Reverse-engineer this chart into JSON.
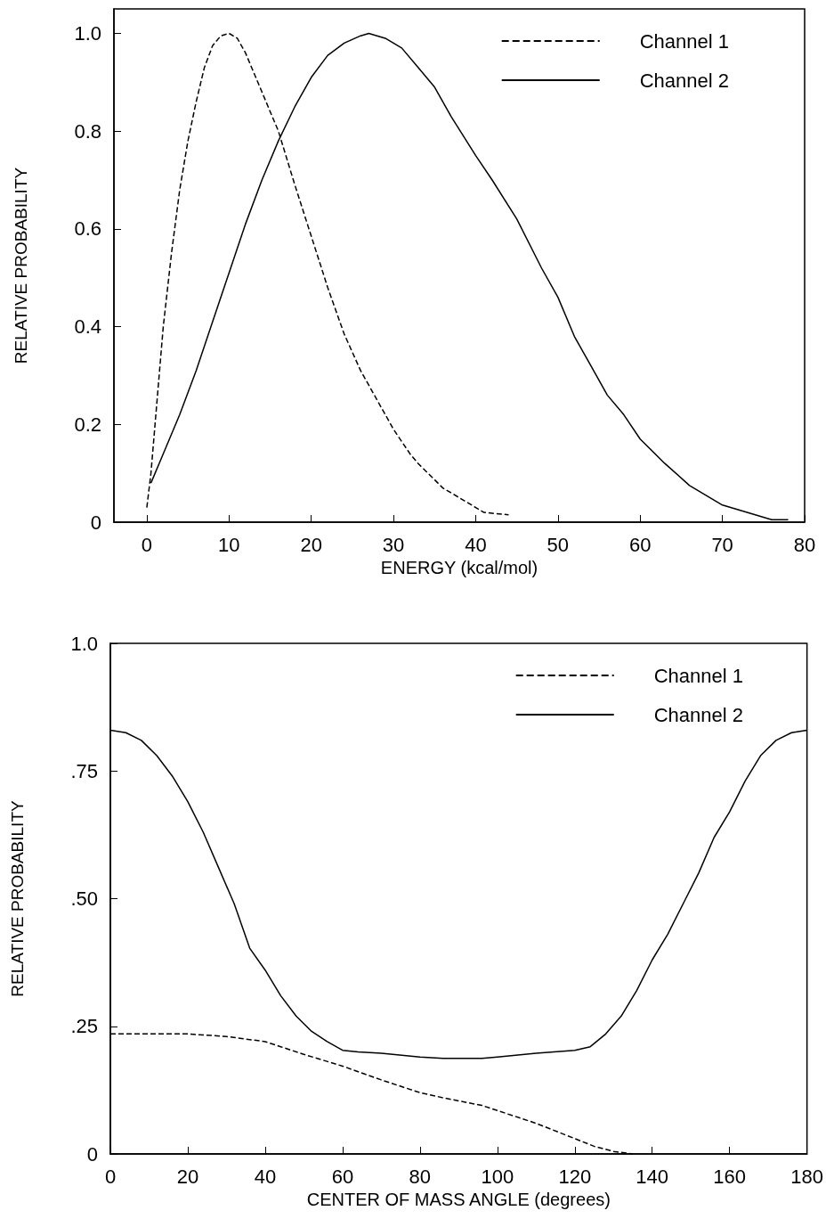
{
  "chart_data": [
    {
      "type": "line",
      "xlabel": "ENERGY (kcal/mol)",
      "ylabel": "RELATIVE PROBABILITY",
      "xlim": [
        -4,
        80
      ],
      "xticks": [
        0,
        10,
        20,
        30,
        40,
        50,
        60,
        70,
        80
      ],
      "ylim": [
        0,
        1.05
      ],
      "yticks": [
        0,
        {
          "value": 0.2,
          "label": "0.2"
        },
        {
          "value": 0.4,
          "label": "0.4"
        },
        {
          "value": 0.6,
          "label": "0.6"
        },
        {
          "value": 0.8,
          "label": "0.8"
        },
        {
          "value": 1,
          "label": "1.0"
        }
      ],
      "grid": false,
      "legend": "top right",
      "marker": "none",
      "series": [
        {
          "name": "Channel 1",
          "color": "#000000",
          "line_style": "dashed",
          "x": [
            0,
            0.5,
            1,
            2,
            3,
            4,
            5,
            6,
            7,
            8,
            9,
            10,
            11,
            12,
            13,
            14,
            16,
            18,
            20,
            22,
            24,
            26,
            28,
            30,
            32,
            33,
            36,
            38,
            40,
            41,
            44
          ],
          "values": [
            0.03,
            0.1,
            0.2,
            0.4,
            0.55,
            0.68,
            0.78,
            0.86,
            0.93,
            0.975,
            0.995,
            1.0,
            0.99,
            0.96,
            0.92,
            0.88,
            0.8,
            0.69,
            0.585,
            0.48,
            0.385,
            0.31,
            0.25,
            0.19,
            0.14,
            0.12,
            0.07,
            0.05,
            0.03,
            0.02,
            0.015
          ]
        },
        {
          "name": "Channel 2",
          "color": "#000000",
          "line_style": "solid",
          "x": [
            0.5,
            2,
            4,
            6,
            8,
            10,
            12,
            14,
            16,
            18,
            20,
            22,
            24,
            26,
            27,
            29,
            31,
            33,
            35,
            37,
            40,
            42,
            45,
            48,
            50,
            52,
            54,
            56,
            58,
            60,
            63,
            66,
            70,
            73,
            76,
            78
          ],
          "values": [
            0.08,
            0.14,
            0.22,
            0.31,
            0.41,
            0.51,
            0.61,
            0.7,
            0.78,
            0.85,
            0.91,
            0.955,
            0.98,
            0.995,
            1.0,
            0.99,
            0.97,
            0.93,
            0.89,
            0.83,
            0.75,
            0.7,
            0.62,
            0.52,
            0.46,
            0.38,
            0.32,
            0.26,
            0.22,
            0.17,
            0.12,
            0.075,
            0.035,
            0.02,
            0.005,
            0.005
          ]
        }
      ]
    },
    {
      "type": "line",
      "xlabel": "CENTER OF MASS ANGLE (degrees)",
      "ylabel": "RELATIVE PROBABILITY",
      "xlim": [
        0,
        180
      ],
      "xticks": [
        0,
        20,
        40,
        60,
        80,
        100,
        120,
        140,
        160,
        180
      ],
      "ylim": [
        0,
        1
      ],
      "yticks": [
        0,
        {
          "value": 0.25,
          "label": ".25"
        },
        {
          "value": 0.5,
          "label": ".50"
        },
        {
          "value": 0.75,
          "label": ".75"
        },
        {
          "value": 1,
          "label": "1.0"
        }
      ],
      "grid": false,
      "legend": "top right",
      "marker": "none",
      "series": [
        {
          "name": "Channel 1",
          "color": "#000000",
          "line_style": "dashed",
          "x": [
            0,
            20,
            30,
            40,
            44,
            50,
            60,
            70,
            80,
            86,
            96,
            100,
            110,
            120,
            125,
            130,
            135
          ],
          "values": [
            0.235,
            0.235,
            0.23,
            0.22,
            0.21,
            0.195,
            0.172,
            0.145,
            0.12,
            0.11,
            0.095,
            0.085,
            0.06,
            0.03,
            0.015,
            0.005,
            0.0
          ]
        },
        {
          "name": "Channel 2",
          "color": "#000000",
          "line_style": "solid",
          "x": [
            0,
            4,
            8,
            12,
            16,
            20,
            24,
            28,
            32,
            36,
            40,
            44,
            48,
            52,
            56,
            60,
            64,
            70,
            80,
            86,
            96,
            100,
            110,
            120,
            124,
            128,
            132,
            136,
            140,
            144,
            148,
            152,
            156,
            160,
            164,
            168,
            172,
            176,
            180
          ],
          "values": [
            0.83,
            0.825,
            0.81,
            0.78,
            0.74,
            0.69,
            0.63,
            0.56,
            0.49,
            0.403,
            0.36,
            0.31,
            0.27,
            0.24,
            0.22,
            0.203,
            0.2,
            0.197,
            0.19,
            0.187,
            0.187,
            0.19,
            0.197,
            0.203,
            0.21,
            0.235,
            0.27,
            0.32,
            0.38,
            0.43,
            0.49,
            0.55,
            0.62,
            0.67,
            0.73,
            0.78,
            0.81,
            0.825,
            0.83
          ]
        }
      ]
    }
  ]
}
